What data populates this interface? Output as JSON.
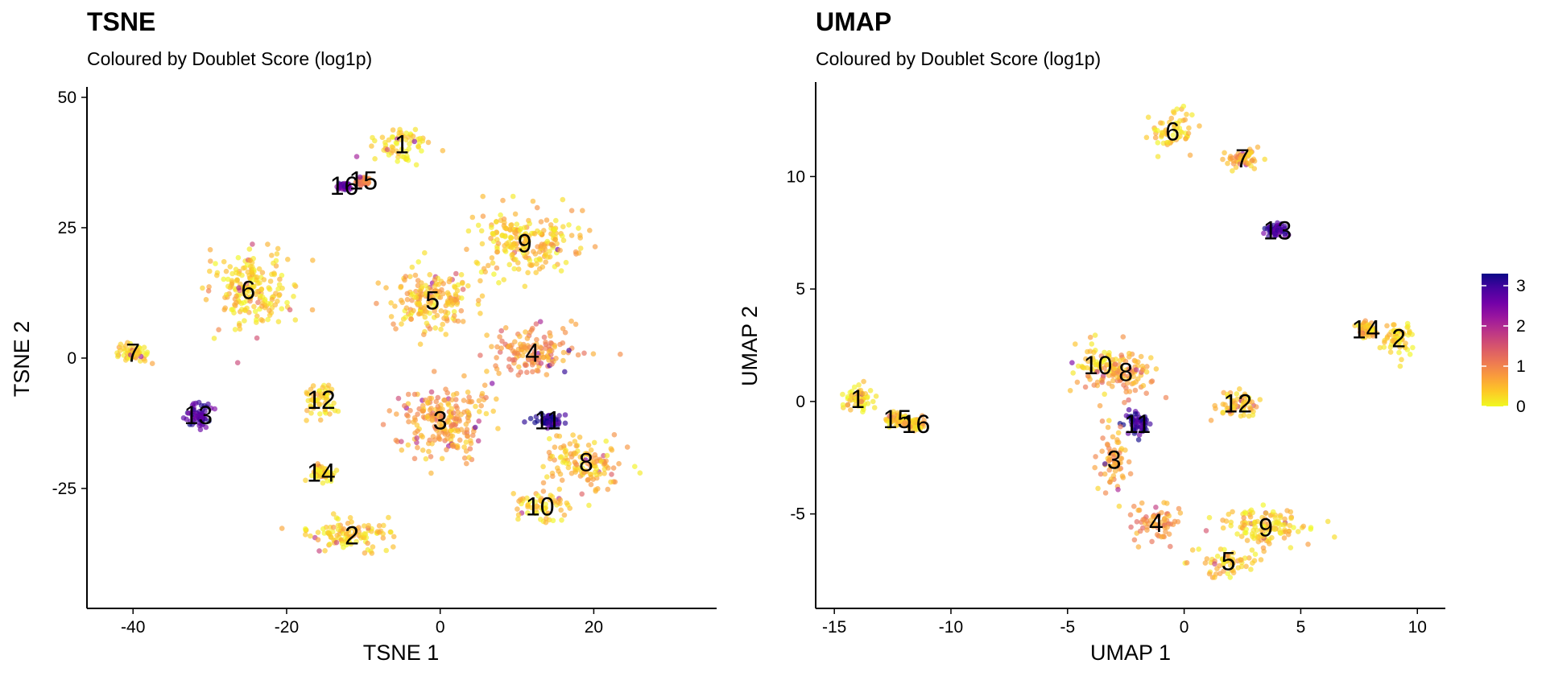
{
  "colors": {
    "scale": [
      "#F0F921",
      "#FDC926",
      "#FA9E3B",
      "#ED7953",
      "#D8576B",
      "#BD3786",
      "#9C179E",
      "#7301A8",
      "#47039F",
      "#0D0887"
    ]
  },
  "legend": {
    "range": [
      0,
      3.3
    ],
    "ticks": [
      "3",
      "2",
      "1",
      "0"
    ],
    "tick_values": [
      3,
      2,
      1,
      0
    ],
    "placement": "right"
  },
  "chart_data": [
    {
      "type": "scatter",
      "title": "TSNE",
      "subtitle": "Coloured by Doublet Score (log1p)",
      "xlabel": "TSNE 1",
      "ylabel": "TSNE 2",
      "xlim": [
        -46,
        36
      ],
      "ylim": [
        -48,
        52
      ],
      "x_ticks": [
        -40,
        -20,
        0,
        20
      ],
      "x_tick_labels": [
        "-40",
        "-20",
        "0",
        "20"
      ],
      "y_ticks": [
        -25,
        0,
        25,
        50
      ],
      "y_tick_labels": [
        "-25",
        "0",
        "25",
        "50"
      ],
      "grid": false,
      "clusters": [
        {
          "label": "1",
          "x": -5,
          "y": 41,
          "sx": 3.2,
          "sy": 2.8,
          "score": 0.15
        },
        {
          "label": "15",
          "x": -10,
          "y": 34,
          "sx": 0.8,
          "sy": 0.7,
          "score": 1.0
        },
        {
          "label": "16",
          "x": -12.5,
          "y": 33,
          "sx": 0.6,
          "sy": 0.5,
          "score": 2.8
        },
        {
          "label": "9",
          "x": 11,
          "y": 22,
          "sx": 6,
          "sy": 5,
          "score": 0.4
        },
        {
          "label": "6",
          "x": -25,
          "y": 13,
          "sx": 4.5,
          "sy": 6,
          "score": 0.3
        },
        {
          "label": "5",
          "x": -1,
          "y": 11,
          "sx": 5,
          "sy": 5,
          "score": 0.5
        },
        {
          "label": "7",
          "x": -40,
          "y": 1,
          "sx": 1.8,
          "sy": 1.5,
          "score": 0.3
        },
        {
          "label": "4",
          "x": 12,
          "y": 1,
          "sx": 5,
          "sy": 4,
          "score": 0.9
        },
        {
          "label": "12",
          "x": -15.5,
          "y": -8,
          "sx": 2,
          "sy": 3,
          "score": 0.3
        },
        {
          "label": "13",
          "x": -31.5,
          "y": -11,
          "sx": 1.3,
          "sy": 2,
          "score": 2.9
        },
        {
          "label": "3",
          "x": 0,
          "y": -12,
          "sx": 5,
          "sy": 6,
          "score": 0.7
        },
        {
          "label": "11",
          "x": 14,
          "y": -12,
          "sx": 1.6,
          "sy": 1.3,
          "score": 3.1
        },
        {
          "label": "8",
          "x": 19,
          "y": -20,
          "sx": 4.5,
          "sy": 4,
          "score": 0.5
        },
        {
          "label": "14",
          "x": -15.5,
          "y": -22,
          "sx": 1.2,
          "sy": 1.5,
          "score": 0.3
        },
        {
          "label": "10",
          "x": 13,
          "y": -28.5,
          "sx": 3.5,
          "sy": 2.5,
          "score": 0.3
        },
        {
          "label": "2",
          "x": -11.5,
          "y": -34,
          "sx": 5.5,
          "sy": 2.8,
          "score": 0.35
        }
      ]
    },
    {
      "type": "scatter",
      "title": "UMAP",
      "subtitle": "Coloured by Doublet Score (log1p)",
      "xlabel": "UMAP 1",
      "ylabel": "UMAP 2",
      "xlim": [
        -15.8,
        11.2
      ],
      "ylim": [
        -9.2,
        14.2
      ],
      "x_ticks": [
        -15,
        -10,
        -5,
        0,
        5,
        10
      ],
      "x_tick_labels": [
        "-15",
        "-10",
        "-5",
        "0",
        "5",
        "10"
      ],
      "y_ticks": [
        -5,
        0,
        5,
        10
      ],
      "y_tick_labels": [
        "-5",
        "0",
        "5",
        "10"
      ],
      "grid": false,
      "clusters": [
        {
          "label": "6",
          "x": -0.5,
          "y": 12,
          "sx": 0.8,
          "sy": 0.8,
          "score": 0.3
        },
        {
          "label": "7",
          "x": 2.5,
          "y": 10.8,
          "sx": 0.6,
          "sy": 0.3,
          "score": 0.6
        },
        {
          "label": "13",
          "x": 4,
          "y": 7.6,
          "sx": 0.4,
          "sy": 0.2,
          "score": 2.9
        },
        {
          "label": "14",
          "x": 7.8,
          "y": 3.2,
          "sx": 0.3,
          "sy": 0.3,
          "score": 0.4
        },
        {
          "label": "2",
          "x": 9.2,
          "y": 2.8,
          "sx": 0.5,
          "sy": 0.6,
          "score": 0.2
        },
        {
          "label": "10",
          "x": -3.7,
          "y": 1.6,
          "sx": 0.8,
          "sy": 0.8,
          "score": 0.4
        },
        {
          "label": "8",
          "x": -2.5,
          "y": 1.3,
          "sx": 1.1,
          "sy": 0.9,
          "score": 0.7
        },
        {
          "label": "12",
          "x": 2.3,
          "y": -0.1,
          "sx": 0.8,
          "sy": 0.5,
          "score": 0.4
        },
        {
          "label": "1",
          "x": -14,
          "y": 0.1,
          "sx": 0.5,
          "sy": 0.5,
          "score": 0.2
        },
        {
          "label": "15",
          "x": -12.3,
          "y": -0.8,
          "sx": 0.4,
          "sy": 0.2,
          "score": 0.3
        },
        {
          "label": "16",
          "x": -11.5,
          "y": -1,
          "sx": 0.3,
          "sy": 0.2,
          "score": 0.5
        },
        {
          "label": "11",
          "x": -2,
          "y": -1,
          "sx": 0.4,
          "sy": 0.4,
          "score": 3.1
        },
        {
          "label": "3",
          "x": -3,
          "y": -2.6,
          "sx": 0.6,
          "sy": 1.2,
          "score": 0.7
        },
        {
          "label": "4",
          "x": -1.2,
          "y": -5.4,
          "sx": 1,
          "sy": 0.7,
          "score": 0.9
        },
        {
          "label": "9",
          "x": 3.5,
          "y": -5.6,
          "sx": 1.6,
          "sy": 0.8,
          "score": 0.3
        },
        {
          "label": "5",
          "x": 1.9,
          "y": -7.1,
          "sx": 1,
          "sy": 0.6,
          "score": 0.4
        }
      ]
    }
  ]
}
